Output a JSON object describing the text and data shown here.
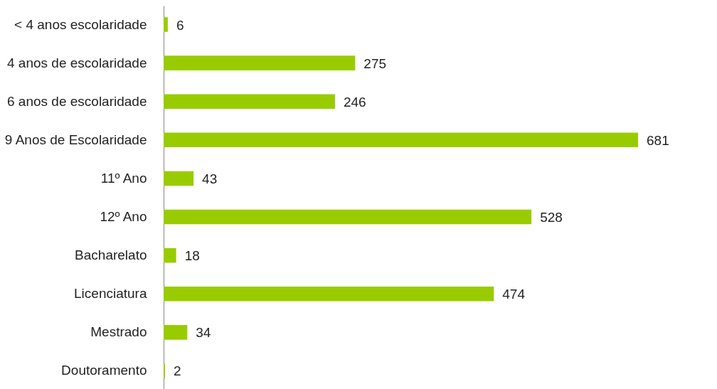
{
  "chart_data": {
    "type": "bar",
    "orientation": "horizontal",
    "categories": [
      "< 4 anos escolaridade",
      "4 anos de escolaridade",
      "6 anos de escolaridade",
      "9 Anos de Escolaridade",
      "11º Ano",
      "12º Ano",
      "Bacharelato",
      "Licenciatura",
      "Mestrado",
      "Doutoramento"
    ],
    "values": [
      6,
      275,
      246,
      681,
      43,
      528,
      18,
      474,
      34,
      2
    ],
    "color": "#99cc00",
    "data_labels": true
  }
}
